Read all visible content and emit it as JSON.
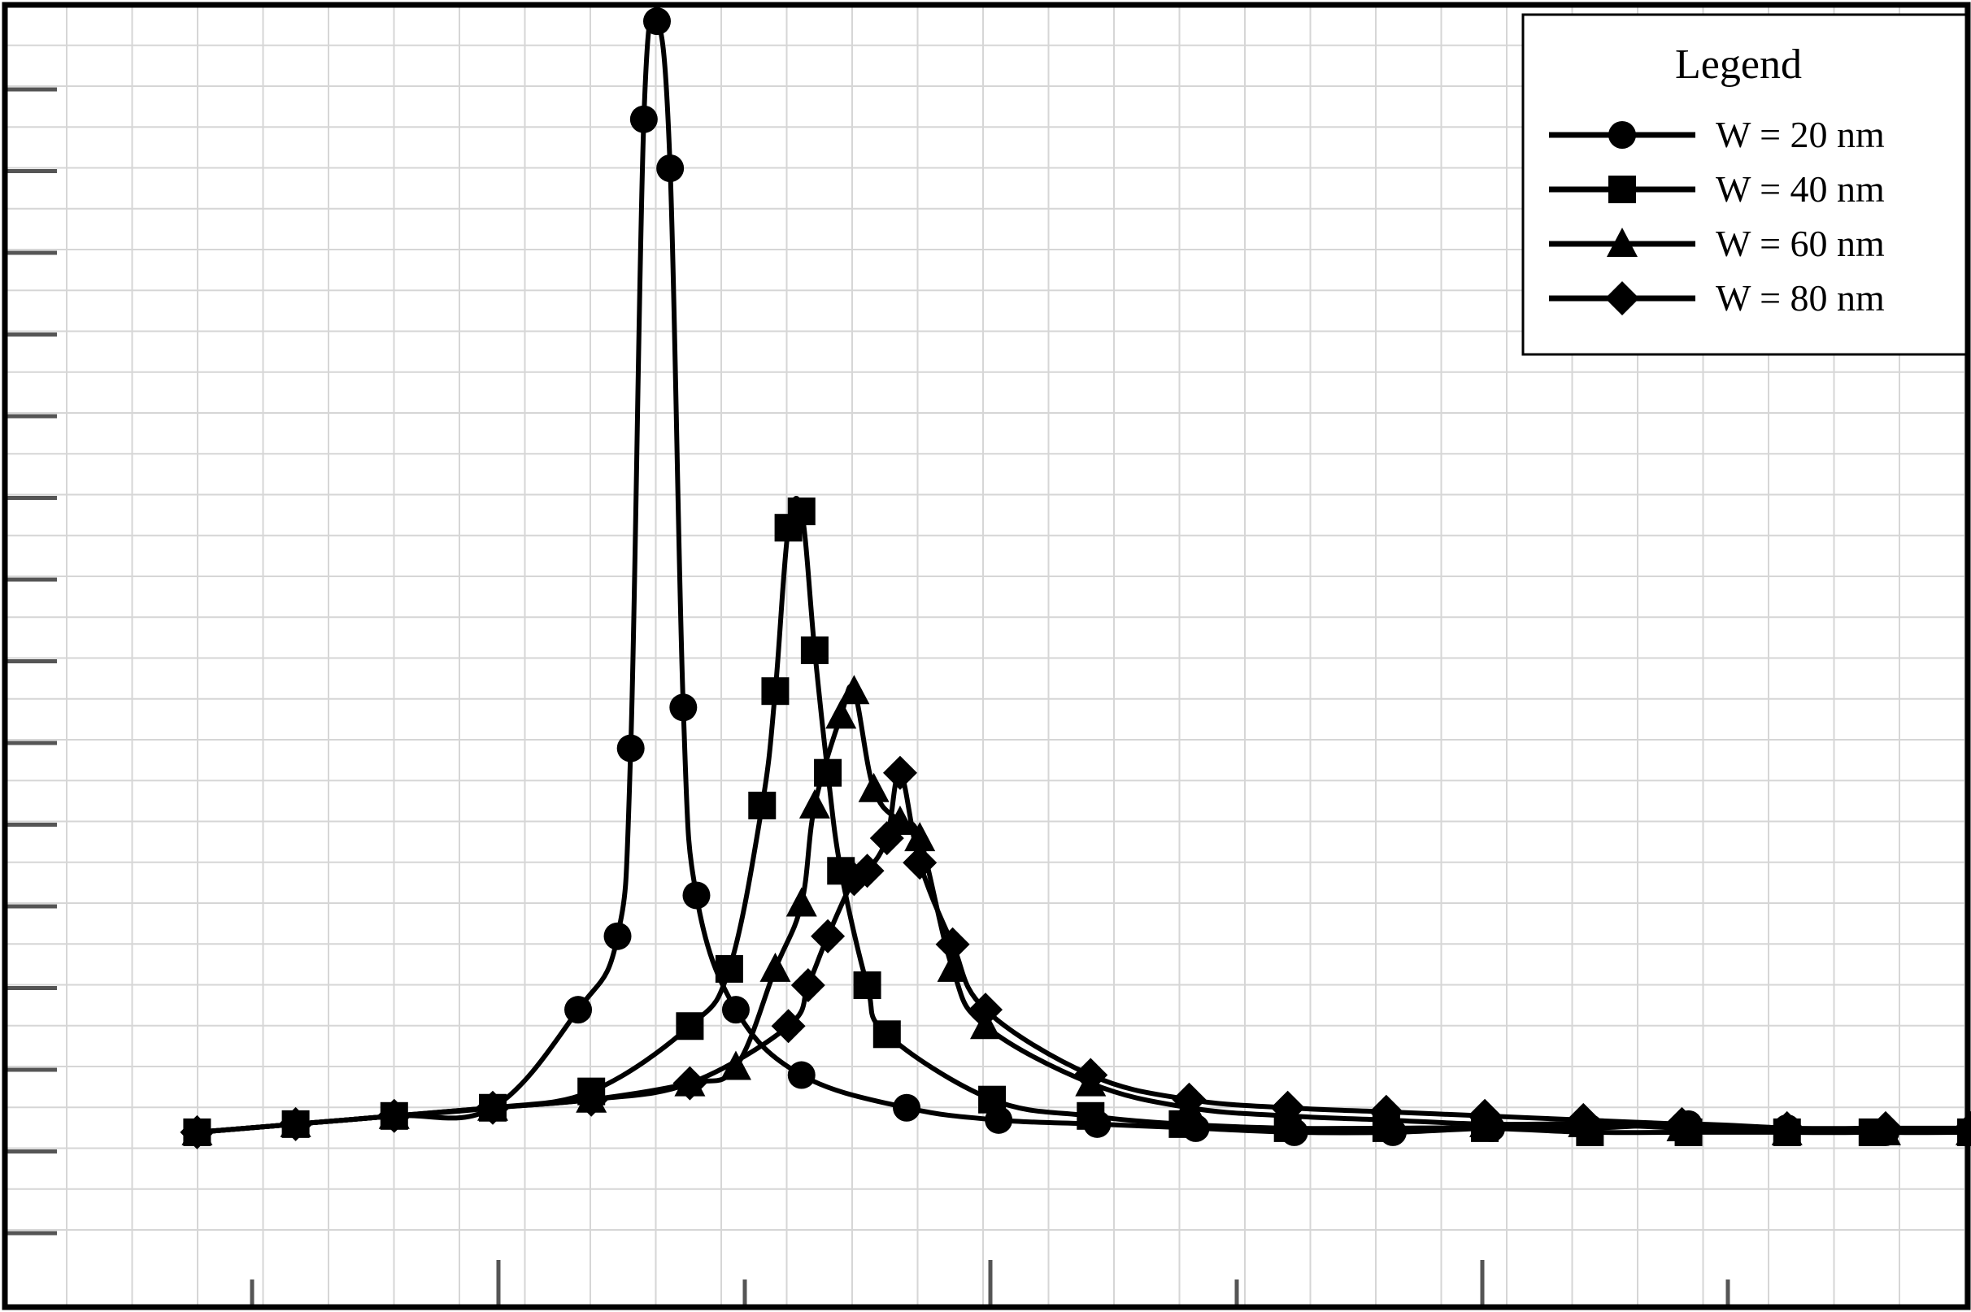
{
  "chart_data": {
    "type": "line",
    "title": "",
    "xlabel": "",
    "ylabel": "",
    "grid": true,
    "xlim": [
      0,
      30
    ],
    "ylim": [
      0,
      16
    ],
    "legend": {
      "title": "Legend",
      "placement": "top-right",
      "entries": [
        "W = 20 nm",
        "W = 40 nm",
        "W = 60 nm",
        "W = 80 nm"
      ]
    },
    "series": [
      {
        "name": "W = 20 nm",
        "marker": "circle",
        "x": [
          3,
          4.5,
          6,
          7.5,
          8.8,
          9.4,
          9.6,
          9.8,
          10,
          10.2,
          10.4,
          10.6,
          11.2,
          12.2,
          13.8,
          15.2,
          16.7,
          18.2,
          19.7,
          21.2,
          22.7,
          24.2,
          25.7,
          27.2,
          28.7,
          30
        ],
        "y": [
          0.2,
          0.3,
          0.4,
          0.5,
          1.7,
          2.6,
          4.9,
          12.6,
          13.8,
          12.0,
          5.4,
          3.1,
          1.7,
          0.9,
          0.5,
          0.35,
          0.3,
          0.25,
          0.2,
          0.2,
          0.25,
          0.25,
          0.3,
          0.25,
          0.2,
          0.2
        ]
      },
      {
        "name": "W = 40 nm",
        "marker": "square",
        "x": [
          3,
          4.5,
          6,
          7.5,
          9.0,
          10.5,
          11.1,
          11.6,
          11.8,
          12.0,
          12.2,
          12.4,
          12.6,
          12.8,
          13.2,
          13.5,
          15.1,
          16.6,
          18.0,
          19.6,
          21.1,
          22.6,
          24.2,
          25.7,
          27.2,
          28.5,
          30
        ],
        "y": [
          0.2,
          0.3,
          0.4,
          0.5,
          0.7,
          1.5,
          2.2,
          4.2,
          5.6,
          7.6,
          7.8,
          6.1,
          4.6,
          3.4,
          2.0,
          1.4,
          0.6,
          0.4,
          0.3,
          0.25,
          0.25,
          0.25,
          0.2,
          0.2,
          0.2,
          0.2,
          0.2
        ]
      },
      {
        "name": "W = 60 nm",
        "marker": "triangle",
        "x": [
          3,
          4.5,
          6,
          7.5,
          9.0,
          10.5,
          11.2,
          11.8,
          12.2,
          12.4,
          12.8,
          13.0,
          13.3,
          13.7,
          14.0,
          14.5,
          15.0,
          16.6,
          18.1,
          19.6,
          21.1,
          22.6,
          24.1,
          25.6,
          27.2,
          28.7,
          30
        ],
        "y": [
          0.2,
          0.3,
          0.4,
          0.5,
          0.6,
          0.8,
          1.0,
          2.2,
          3.0,
          4.2,
          5.3,
          5.6,
          4.4,
          4.0,
          3.8,
          2.2,
          1.5,
          0.8,
          0.5,
          0.4,
          0.35,
          0.3,
          0.3,
          0.25,
          0.2,
          0.2,
          0.2
        ]
      },
      {
        "name": "W = 80 nm",
        "marker": "diamond",
        "x": [
          3,
          4.5,
          6,
          7.5,
          9.0,
          10.5,
          12.0,
          12.3,
          12.6,
          13.0,
          13.2,
          13.5,
          13.7,
          14.0,
          14.5,
          15.0,
          16.6,
          18.1,
          19.6,
          21.1,
          22.6,
          24.1,
          25.6,
          27.2,
          28.7,
          30
        ],
        "y": [
          0.2,
          0.3,
          0.4,
          0.5,
          0.6,
          0.8,
          1.5,
          2.0,
          2.6,
          3.3,
          3.4,
          3.8,
          4.6,
          3.5,
          2.5,
          1.7,
          0.9,
          0.6,
          0.5,
          0.45,
          0.4,
          0.35,
          0.3,
          0.25,
          0.25,
          0.25
        ]
      }
    ]
  }
}
